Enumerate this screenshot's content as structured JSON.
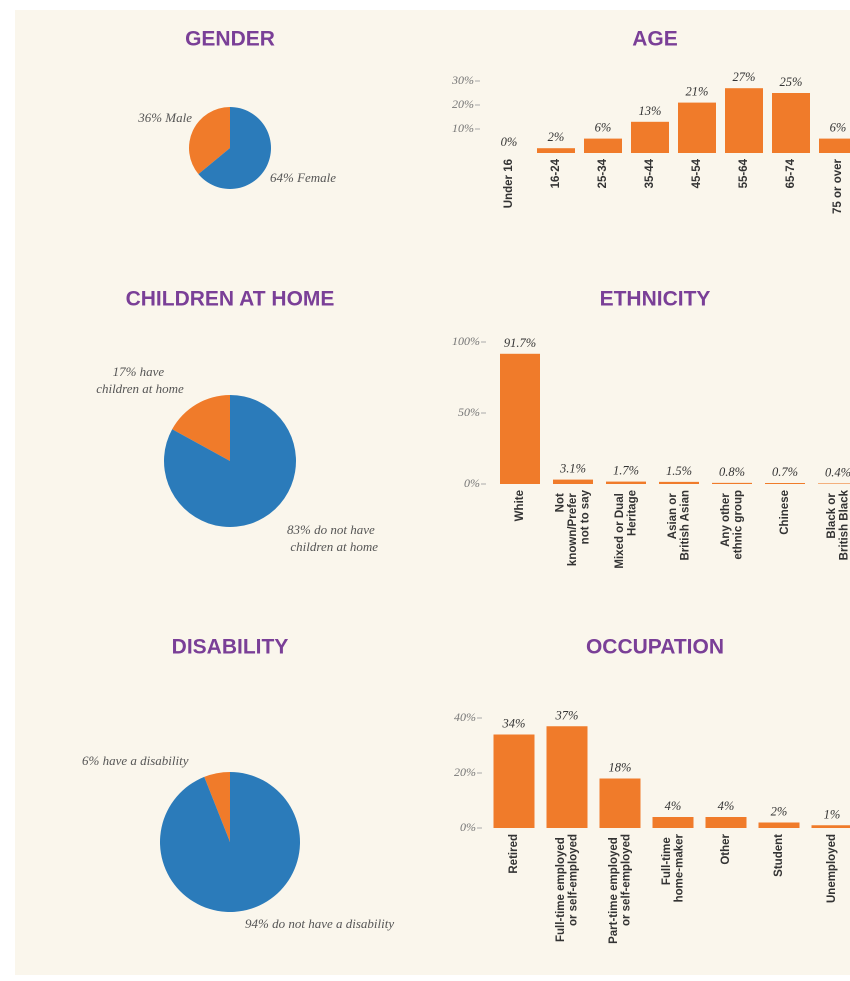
{
  "chart_data": [
    {
      "type": "pie",
      "title": "GENDER",
      "values": [
        36,
        64
      ],
      "value_labels": [
        "36% Male",
        "64% Female"
      ],
      "colors": [
        "#f07b2a",
        "#2b7bba"
      ]
    },
    {
      "type": "bar",
      "title": "AGE",
      "categories": [
        "Under 16",
        "16-24",
        "25-34",
        "35-44",
        "45-54",
        "55-64",
        "65-74",
        "75 or over"
      ],
      "values": [
        0,
        2,
        6,
        13,
        21,
        27,
        25,
        6
      ],
      "value_labels": [
        "0%",
        "2%",
        "6%",
        "13%",
        "21%",
        "27%",
        "25%",
        "6%"
      ],
      "color": "#f07b2a",
      "ylim": [
        0,
        30
      ],
      "yticks": [
        {
          "value": 10,
          "label": "10%"
        },
        {
          "value": 20,
          "label": "20%"
        },
        {
          "value": 30,
          "label": "30%"
        }
      ]
    },
    {
      "type": "pie",
      "title": "CHILDREN AT HOME",
      "values": [
        17,
        83
      ],
      "value_labels": [
        "17% have\nchildren at home",
        "83% do not have\nchildren at home"
      ],
      "colors": [
        "#f07b2a",
        "#2b7bba"
      ]
    },
    {
      "type": "bar",
      "title": "ETHNICITY",
      "categories": [
        "White",
        "Not\nknown/Prefer\nnot to say",
        "Mixed or Dual\nHeritage",
        "Asian or\nBritish Asian",
        "Any other\nethnic group",
        "Chinese",
        "Black or\nBritish Black"
      ],
      "values": [
        91.7,
        3.1,
        1.7,
        1.5,
        0.8,
        0.7,
        0.4
      ],
      "value_labels": [
        "91.7%",
        "3.1%",
        "1.7%",
        "1.5%",
        "0.8%",
        "0.7%",
        "0.4%"
      ],
      "color": "#f07b2a",
      "ylim": [
        0,
        100
      ],
      "yticks": [
        {
          "value": 0,
          "label": "0%"
        },
        {
          "value": 50,
          "label": "50%"
        },
        {
          "value": 100,
          "label": "100%"
        }
      ]
    },
    {
      "type": "pie",
      "title": "DISABILITY",
      "values": [
        6,
        94
      ],
      "value_labels": [
        "6% have a disability",
        "94% do not have a disability"
      ],
      "colors": [
        "#f07b2a",
        "#2b7bba"
      ]
    },
    {
      "type": "bar",
      "title": "OCCUPATION",
      "categories": [
        "Retired",
        "Full-time employed\nor self-employed",
        "Part-time employed\nor self-employed",
        "Full-time\nhome-maker",
        "Other",
        "Student",
        "Unemployed"
      ],
      "values": [
        34,
        37,
        18,
        4,
        4,
        2,
        1
      ],
      "value_labels": [
        "34%",
        "37%",
        "18%",
        "4%",
        "4%",
        "2%",
        "1%"
      ],
      "color": "#f07b2a",
      "ylim": [
        0,
        40
      ],
      "yticks": [
        {
          "value": 0,
          "label": "0%"
        },
        {
          "value": 20,
          "label": "20%"
        },
        {
          "value": 40,
          "label": "40%"
        }
      ]
    }
  ]
}
